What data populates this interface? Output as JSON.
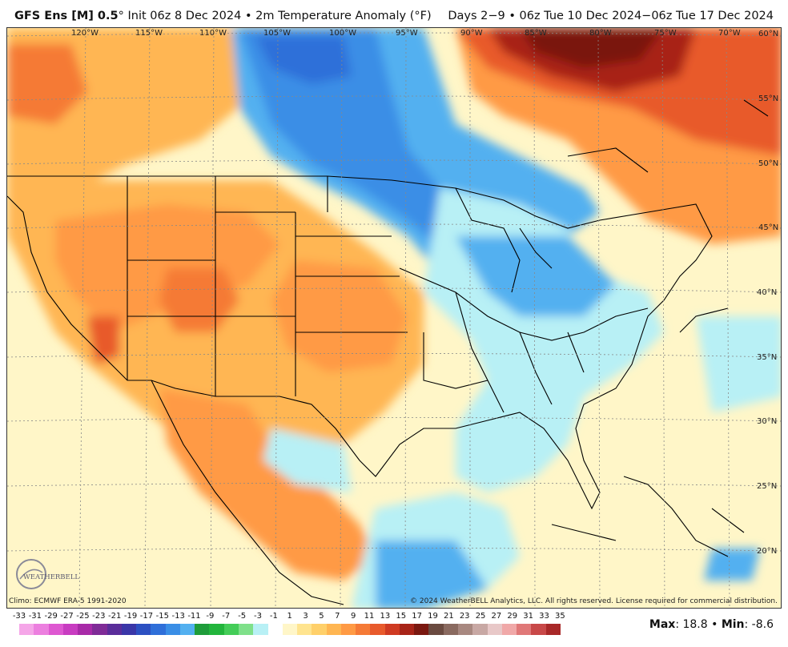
{
  "header": {
    "model": "GFS Ens [M] 0.5",
    "degree": "°",
    "subtitle": " Init 06z 8 Dec 2024 • 2m Temperature Anomaly (°F)",
    "valid": "Days 2−9 • 06z Tue 10 Dec 2024−06z Tue 17 Dec 2024"
  },
  "axes": {
    "longitudes": [
      "120°W",
      "115°W",
      "110°W",
      "105°W",
      "100°W",
      "95°W",
      "90°W",
      "85°W",
      "80°W",
      "75°W",
      "70°W"
    ],
    "latitudes": [
      "60°N",
      "55°N",
      "50°N",
      "45°N",
      "40°N",
      "35°N",
      "30°N",
      "25°N",
      "20°N"
    ]
  },
  "footer": {
    "climo": "Climo: ECMWF ERA-5 1991-2020",
    "copyright": "© 2024 WeatherBELL Analytics, LLC. All rights reserved. License required for commercial distribution.",
    "logo_text": "WEATHERBELL"
  },
  "colorbar": {
    "labels": [
      "-33",
      "-31",
      "-29",
      "-27",
      "-25",
      "-23",
      "-21",
      "-19",
      "-17",
      "-15",
      "-13",
      "-11",
      "-9",
      "-7",
      "-5",
      "-3",
      "-1",
      "1",
      "3",
      "5",
      "7",
      "9",
      "11",
      "13",
      "15",
      "17",
      "19",
      "21",
      "23",
      "25",
      "27",
      "29",
      "31",
      "33",
      "35"
    ],
    "colors": [
      "#f5a6e8",
      "#ec7fdf",
      "#de58d1",
      "#c83cc1",
      "#a82aa8",
      "#7f2b97",
      "#5a2d9a",
      "#3a36a8",
      "#2c50c2",
      "#2f6fd9",
      "#3a8ee6",
      "#53b0f0",
      "#1e9c3a",
      "#22b53c",
      "#44cd58",
      "#7fe08a",
      "#b8f0f5",
      "#ffffff",
      "#fff6c8",
      "#ffe48f",
      "#ffd06a",
      "#ffb652",
      "#ff9a44",
      "#f57a36",
      "#e85a2c",
      "#cf3a22",
      "#a82418",
      "#7a1810",
      "#6a4a40",
      "#8a6a60",
      "#a88880",
      "#c8a8a4",
      "#e8c8c8",
      "#f0a8a8",
      "#e07878",
      "#c84848",
      "#a82828"
    ],
    "max_label": "Max",
    "max_value": ": 18.8 • ",
    "min_label": "Min",
    "min_value": ": -8.6"
  },
  "colors": {
    "cold_strong": "#2f6fd9",
    "cold": "#53b0f0",
    "cool": "#b8f0f5",
    "warm_light": "#fff6c8",
    "warm": "#ffb652",
    "hot": "#e85a2c",
    "very_hot": "#7a1810"
  }
}
